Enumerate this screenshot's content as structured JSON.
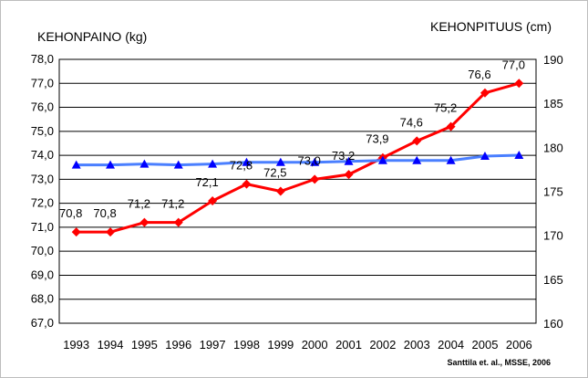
{
  "chart_data": {
    "type": "line",
    "title": "",
    "ylabel": "KEHONPAINO (kg)",
    "y2label": "KEHONPITUUS (cm)",
    "source": "Santtila et. al., MSSE, 2006",
    "categories": [
      "1993",
      "1994",
      "1995",
      "1996",
      "1997",
      "1998",
      "1999",
      "2000",
      "2001",
      "2002",
      "2003",
      "2004",
      "2005",
      "2006"
    ],
    "ylim": [
      67.0,
      78.0
    ],
    "y2lim": [
      160,
      190
    ],
    "y_ticks": [
      "67,0",
      "68,0",
      "69,0",
      "70,0",
      "71,0",
      "72,0",
      "73,0",
      "74,0",
      "75,0",
      "76,0",
      "77,0",
      "78,0"
    ],
    "y2_ticks": [
      "160",
      "165",
      "170",
      "175",
      "180",
      "185",
      "190"
    ],
    "grid": true,
    "series": [
      {
        "axis": "left",
        "color": "#ff0000",
        "marker": "diamond",
        "values": [
          70.8,
          70.8,
          71.2,
          71.2,
          72.1,
          72.8,
          72.5,
          73.0,
          73.2,
          73.9,
          74.6,
          75.2,
          76.6,
          77.0
        ],
        "labels": [
          "70,8",
          "70,8",
          "71,2",
          "71,2",
          "72,1",
          "72,8",
          "72,5",
          "73,0",
          "73,2",
          "73,9",
          "74,6",
          "75,2",
          "76,6",
          "77,0"
        ]
      },
      {
        "axis": "right",
        "color": "#4a7fff",
        "marker_color": "#0000ff",
        "marker": "triangle",
        "values": [
          178.0,
          178.0,
          178.1,
          178.0,
          178.1,
          178.3,
          178.3,
          178.3,
          178.4,
          178.5,
          178.5,
          178.5,
          179.0,
          179.1
        ]
      }
    ]
  }
}
